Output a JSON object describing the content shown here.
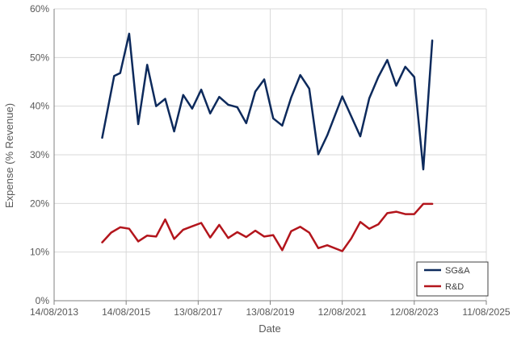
{
  "chart_data": {
    "type": "line",
    "title": "",
    "xlabel": "Date",
    "ylabel": "Expense (% Revenue)",
    "ylim": [
      0,
      60
    ],
    "y_ticks": [
      0,
      10,
      20,
      30,
      40,
      50,
      60
    ],
    "y_tick_labels": [
      "0%",
      "10%",
      "20%",
      "30%",
      "40%",
      "50%",
      "60%"
    ],
    "x_tick_labels": [
      "14/08/2013",
      "14/08/2015",
      "13/08/2017",
      "13/08/2019",
      "12/08/2021",
      "12/08/2023",
      "11/08/2025"
    ],
    "xlim_index": [
      0,
      6
    ],
    "grid": true,
    "legend_position": "bottom-right",
    "series": [
      {
        "name": "SG&A",
        "color": "#0d2a5c",
        "x": [
          0.667,
          0.833,
          0.917,
          1.042,
          1.167,
          1.292,
          1.417,
          1.542,
          1.667,
          1.792,
          1.917,
          2.042,
          2.167,
          2.292,
          2.417,
          2.542,
          2.667,
          2.792,
          2.917,
          3.042,
          3.167,
          3.292,
          3.417,
          3.542,
          3.667,
          3.792,
          4.0,
          4.25,
          4.375,
          4.5,
          4.625,
          4.75,
          4.875,
          5.0,
          5.125,
          5.25
        ],
        "values": [
          33.5,
          46.2,
          46.8,
          54.9,
          36.3,
          48.5,
          40.0,
          41.5,
          34.8,
          42.3,
          39.5,
          43.4,
          38.5,
          41.9,
          40.3,
          39.8,
          36.5,
          43.0,
          45.5,
          37.5,
          36.0,
          41.8,
          46.4,
          43.6,
          30.1,
          34.0,
          42.0,
          33.8,
          41.6,
          46.0,
          49.5,
          44.2,
          48.1,
          46.0,
          27.0,
          53.5
        ]
      },
      {
        "name": "R&D",
        "color": "#b3151c",
        "x": [
          0.667,
          0.792,
          0.917,
          1.042,
          1.167,
          1.292,
          1.417,
          1.542,
          1.667,
          1.792,
          1.917,
          2.042,
          2.167,
          2.292,
          2.417,
          2.542,
          2.667,
          2.792,
          2.917,
          3.042,
          3.167,
          3.292,
          3.417,
          3.542,
          3.667,
          3.792,
          4.0,
          4.125,
          4.25,
          4.375,
          4.5,
          4.625,
          4.75,
          4.875,
          5.0,
          5.125,
          5.25
        ],
        "values": [
          12.0,
          14.0,
          15.1,
          14.8,
          12.2,
          13.4,
          13.2,
          16.7,
          12.7,
          14.6,
          15.3,
          16.0,
          13.0,
          15.6,
          12.9,
          14.1,
          13.1,
          14.4,
          13.2,
          13.5,
          10.4,
          14.3,
          15.2,
          14.0,
          10.8,
          11.4,
          10.2,
          12.8,
          16.2,
          14.8,
          15.7,
          18.0,
          18.3,
          17.8,
          17.8,
          19.9,
          19.9
        ]
      }
    ]
  }
}
